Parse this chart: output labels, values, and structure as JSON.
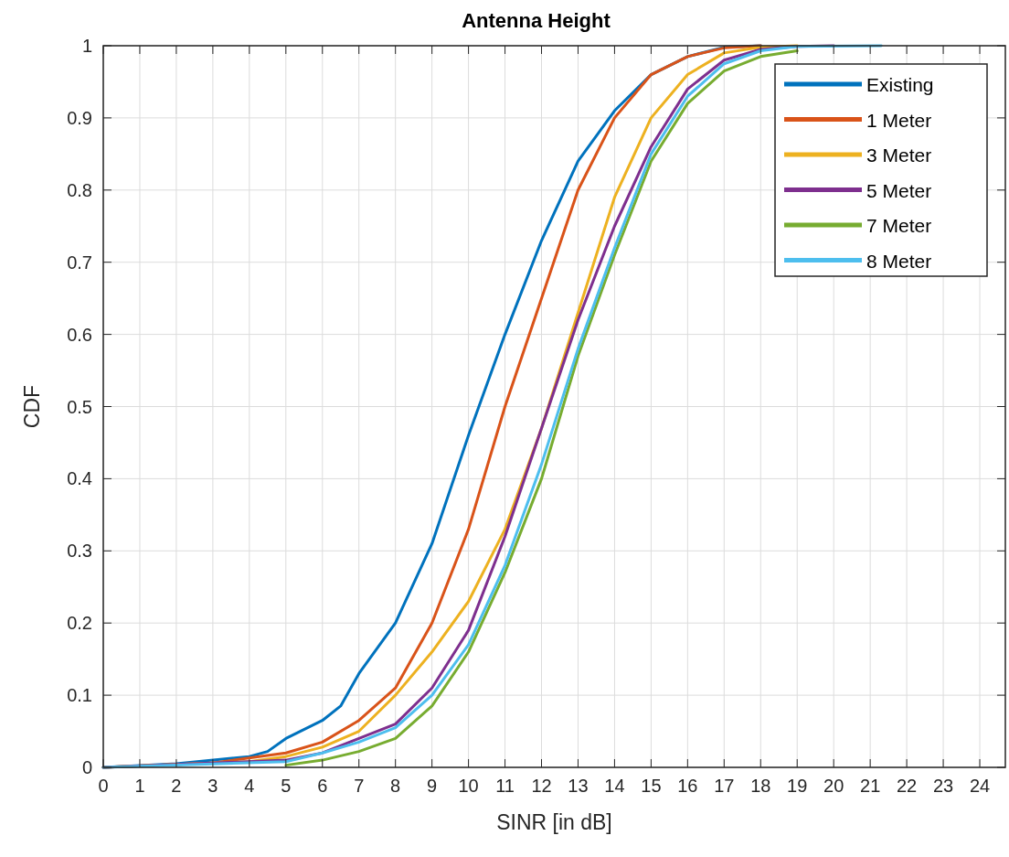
{
  "chart_data": {
    "type": "line",
    "title": "Antenna Height",
    "xlabel": "SINR [in dB]",
    "ylabel": "CDF",
    "xlim": [
      0,
      24.7
    ],
    "xticks": [
      0,
      1,
      2,
      3,
      4,
      5,
      6,
      7,
      8,
      9,
      10,
      11,
      12,
      13,
      14,
      15,
      16,
      17,
      18,
      19,
      20,
      21,
      22,
      23,
      24
    ],
    "ylim": [
      0,
      1
    ],
    "yticks": [
      0,
      0.1,
      0.2,
      0.3,
      0.4,
      0.5,
      0.6,
      0.7,
      0.8,
      0.9,
      1
    ],
    "grid": true,
    "legend": "top right",
    "marker": "none",
    "line_style": "solid",
    "series": [
      {
        "name": "Existing",
        "color": "#0072bd",
        "x": [
          0,
          2,
          4,
          4.5,
          5,
          6,
          6.5,
          7,
          8,
          9,
          10,
          11,
          12,
          13,
          14,
          15,
          16,
          17,
          18
        ],
        "values": [
          0,
          0.005,
          0.015,
          0.022,
          0.04,
          0.065,
          0.085,
          0.13,
          0.2,
          0.31,
          0.46,
          0.6,
          0.73,
          0.84,
          0.91,
          0.96,
          0.985,
          0.998,
          1
        ]
      },
      {
        "name": "1 Meter",
        "color": "#d95319",
        "x": [
          0,
          3,
          5,
          6,
          7,
          8,
          9,
          10,
          11,
          12,
          13,
          14,
          15,
          16,
          17,
          18
        ],
        "values": [
          0,
          0.006,
          0.02,
          0.035,
          0.065,
          0.11,
          0.2,
          0.33,
          0.5,
          0.65,
          0.8,
          0.9,
          0.96,
          0.985,
          0.997,
          1
        ]
      },
      {
        "name": "3 Meter",
        "color": "#edb120",
        "x": [
          0,
          4,
          5,
          6,
          7,
          8,
          9,
          10,
          11,
          12,
          13,
          14,
          15,
          16,
          17,
          18,
          19
        ],
        "values": [
          0,
          0.008,
          0.015,
          0.028,
          0.05,
          0.1,
          0.16,
          0.23,
          0.33,
          0.47,
          0.63,
          0.79,
          0.9,
          0.96,
          0.99,
          0.998,
          1
        ]
      },
      {
        "name": "5 Meter",
        "color": "#7e2f8e",
        "x": [
          0,
          5,
          6,
          7,
          8,
          9,
          10,
          11,
          12,
          13,
          14,
          15,
          16,
          17,
          18,
          19,
          20
        ],
        "values": [
          0,
          0.01,
          0.02,
          0.04,
          0.06,
          0.11,
          0.19,
          0.32,
          0.47,
          0.62,
          0.75,
          0.86,
          0.94,
          0.98,
          0.995,
          0.999,
          1
        ]
      },
      {
        "name": "7 Meter",
        "color": "#77ac30",
        "x": [
          5,
          6,
          7,
          8,
          9,
          10,
          11,
          12,
          13,
          14,
          15,
          16,
          17,
          18,
          19
        ],
        "values": [
          0.003,
          0.01,
          0.022,
          0.04,
          0.085,
          0.16,
          0.27,
          0.4,
          0.57,
          0.71,
          0.84,
          0.92,
          0.965,
          0.985,
          0.993
        ]
      },
      {
        "name": "8 Meter",
        "color": "#4dbeee",
        "x": [
          0,
          5,
          6,
          7,
          8,
          9,
          10,
          11,
          12,
          13,
          14,
          15,
          16,
          17,
          18,
          19,
          21.3
        ],
        "values": [
          0,
          0.008,
          0.02,
          0.035,
          0.055,
          0.1,
          0.17,
          0.28,
          0.42,
          0.58,
          0.72,
          0.85,
          0.93,
          0.975,
          0.993,
          0.999,
          1
        ]
      }
    ]
  }
}
